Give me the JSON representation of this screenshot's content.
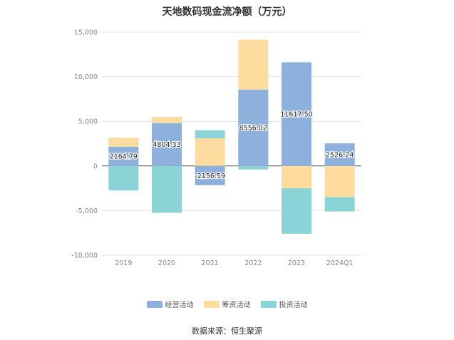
{
  "chart_data": {
    "type": "bar",
    "stacked": true,
    "title": "天地数码现金流净额（万元）",
    "categories": [
      "2019",
      "2020",
      "2021",
      "2022",
      "2023",
      "2024Q1"
    ],
    "series": [
      {
        "name": "经营活动",
        "color": "#8eb0dc",
        "values": [
          2164.79,
          4804.33,
          -2156.59,
          8556.02,
          11617.5,
          2526.24
        ],
        "labels": [
          "2164.79",
          "4804.33",
          "-2156.59",
          "8556.02",
          "11617.50",
          "2526.24"
        ]
      },
      {
        "name": "筹资活动",
        "color": "#fedc9f",
        "values": [
          1000,
          700,
          3100,
          5600,
          -2500,
          -3500
        ]
      },
      {
        "name": "投资活动",
        "color": "#8ad4d8",
        "values": [
          -2750,
          -5250,
          900,
          -400,
          -5100,
          -1600
        ]
      }
    ],
    "yticks": [
      15000,
      10000,
      5000,
      0,
      -5000,
      -10000
    ],
    "ytick_labels": [
      "15,000",
      "10,000",
      "5,000",
      "0",
      "-5,000",
      "-10,000"
    ],
    "ylim": [
      -10000,
      15000
    ],
    "grid": true,
    "legend_position": "bottom"
  },
  "source": "数据来源：恒生聚源"
}
